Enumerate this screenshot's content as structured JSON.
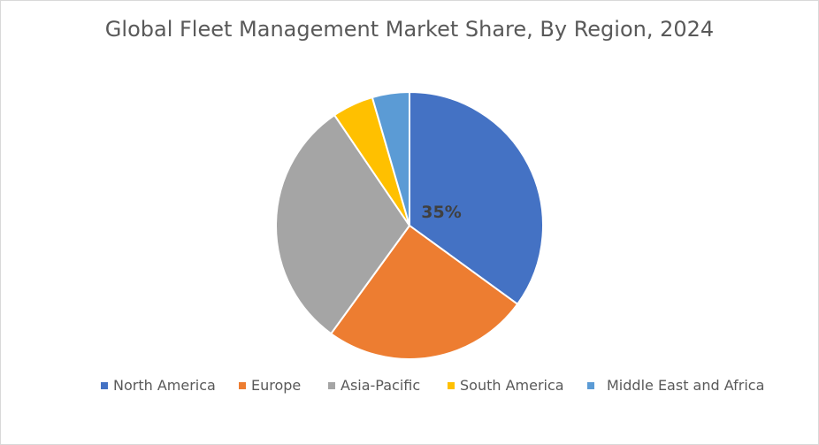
{
  "chart_data": {
    "type": "pie",
    "title": "Global Fleet Management Market Share, By Region, 2024",
    "categories": [
      "North America",
      "Europe",
      "Asia-Pacific",
      "South America",
      "Middle East and Africa"
    ],
    "values": [
      35,
      25,
      30.5,
      5,
      4.5
    ],
    "unit": "%",
    "colors": [
      "#4472c4",
      "#ed7d31",
      "#a5a5a5",
      "#ffc000",
      "#5b9bd5"
    ],
    "data_labels": [
      "35%",
      "",
      "",
      "",
      ""
    ],
    "legend_position": "bottom",
    "start_angle_deg": 0,
    "direction": "clockwise"
  }
}
